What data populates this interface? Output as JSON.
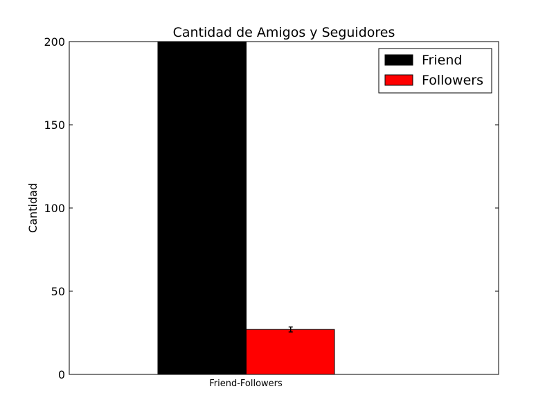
{
  "chart_data": {
    "type": "bar",
    "title": "Cantidad de Amigos y Seguidores",
    "xlabel": "",
    "ylabel": "Cantidad",
    "categories": [
      "Friend-Followers"
    ],
    "ylim": [
      0,
      200
    ],
    "yticks": [
      0,
      50,
      100,
      150,
      200
    ],
    "grid": false,
    "legend_position": "top-right",
    "series": [
      {
        "name": "Friend",
        "values": [
          200
        ],
        "color": "#000000"
      },
      {
        "name": "Followers",
        "values": [
          27
        ],
        "error": [
          1.5
        ],
        "color": "#ff0000"
      }
    ]
  }
}
